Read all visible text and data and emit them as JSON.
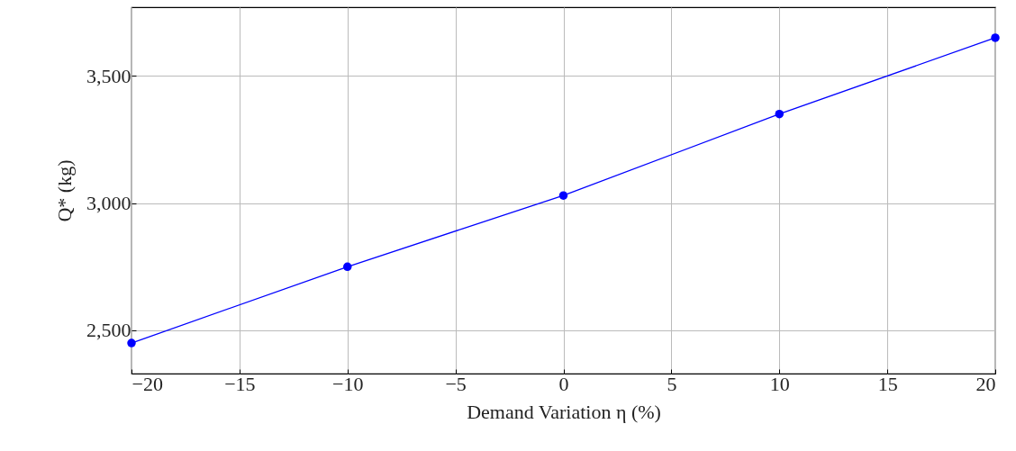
{
  "chart_data": {
    "type": "line",
    "xlabel": "Demand Variation η (%)",
    "ylabel": "Q* (kg)",
    "x": [
      -20,
      -10,
      0,
      10,
      20
    ],
    "series": [
      {
        "color": "#0000ff",
        "values": [
          2450,
          2750,
          3030,
          3350,
          3650
        ]
      }
    ],
    "xlim": [
      -20,
      20
    ],
    "xticks": [
      {
        "value": -20,
        "label": "−20"
      },
      {
        "value": -15,
        "label": "−15"
      },
      {
        "value": -10,
        "label": "−10"
      },
      {
        "value": -5,
        "label": "−5"
      },
      0,
      5,
      10,
      15,
      20
    ],
    "ylim": [
      2330,
      3770
    ],
    "yticks": [
      {
        "value": 2500,
        "label": "2,500"
      },
      {
        "value": 3000,
        "label": "3,000"
      },
      {
        "value": 3500,
        "label": "3,500"
      }
    ],
    "grid": true,
    "marker": "circle",
    "line_style": "solid"
  }
}
